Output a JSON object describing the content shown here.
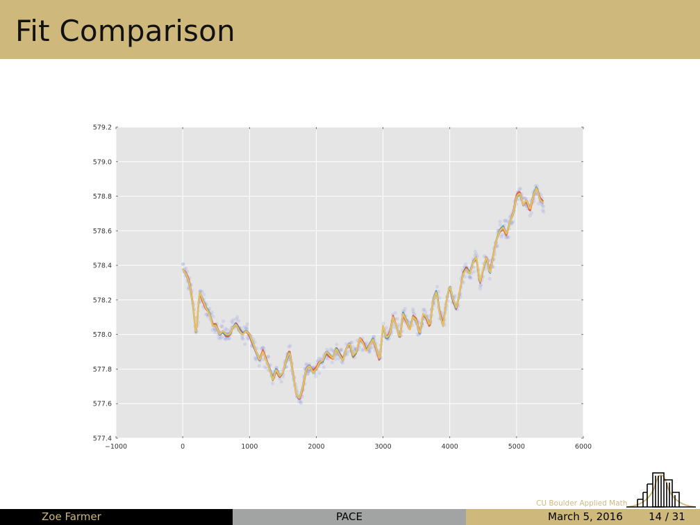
{
  "slide": {
    "title": "Fit Comparison"
  },
  "footer": {
    "author": "Zoe Farmer",
    "title": "PACE",
    "date": "March 5, 2016",
    "page": "14 / 31",
    "institute": "CU Boulder Applied Math"
  },
  "colors": {
    "gold": "#cfb87c",
    "black": "#000000",
    "gray": "#a2a4a3",
    "plot_bg": "#e5e5e5",
    "points": "#6f7fd8",
    "series": [
      "#e24a33",
      "#348abd",
      "#988ed5",
      "#8eba42",
      "#fbc15e"
    ]
  },
  "chart_data": {
    "type": "scatter",
    "xlim": [
      -1000,
      6000
    ],
    "ylim": [
      577.4,
      579.2
    ],
    "x_ticks": [
      "−1000",
      "0",
      "1000",
      "2000",
      "3000",
      "4000",
      "5000",
      "6000"
    ],
    "y_ticks": [
      "577.4",
      "577.6",
      "577.8",
      "578.0",
      "578.2",
      "578.4",
      "578.6",
      "578.8",
      "579.0",
      "579.2"
    ],
    "grid": true,
    "trend": {
      "x": [
        0,
        50,
        100,
        150,
        200,
        250,
        300,
        350,
        400,
        450,
        500,
        550,
        600,
        650,
        700,
        750,
        800,
        850,
        900,
        950,
        1000,
        1050,
        1100,
        1150,
        1200,
        1250,
        1300,
        1350,
        1400,
        1450,
        1500,
        1550,
        1600,
        1650,
        1700,
        1750,
        1800,
        1850,
        1900,
        1950,
        2000,
        2050,
        2100,
        2150,
        2200,
        2250,
        2300,
        2350,
        2400,
        2450,
        2500,
        2550,
        2600,
        2650,
        2700,
        2750,
        2800,
        2850,
        2900,
        2950,
        3000,
        3050,
        3100,
        3150,
        3200,
        3250,
        3300,
        3350,
        3400,
        3450,
        3500,
        3550,
        3600,
        3650,
        3700,
        3750,
        3800,
        3850,
        3900,
        3950,
        4000,
        4050,
        4100,
        4150,
        4200,
        4250,
        4300,
        4350,
        4400,
        4450,
        4500,
        4550,
        4600,
        4650,
        4700,
        4750,
        4800,
        4850,
        4900,
        4950,
        5000,
        5050,
        5100,
        5150,
        5200,
        5250,
        5300,
        5350,
        5400
      ],
      "y": [
        578.38,
        578.35,
        578.3,
        578.18,
        578.0,
        578.25,
        578.2,
        578.15,
        578.12,
        578.05,
        578.05,
        578.0,
        578.02,
        578.0,
        578.0,
        578.04,
        578.06,
        578.02,
        578.0,
        578.02,
        578.0,
        577.95,
        577.9,
        577.85,
        577.9,
        577.85,
        577.8,
        577.74,
        577.8,
        577.76,
        577.78,
        577.85,
        577.9,
        577.78,
        577.65,
        577.63,
        577.7,
        577.8,
        577.82,
        577.78,
        577.8,
        577.84,
        577.85,
        577.9,
        577.88,
        577.86,
        577.92,
        577.88,
        577.85,
        577.92,
        577.95,
        577.88,
        577.9,
        577.98,
        577.95,
        577.9,
        577.94,
        577.97,
        577.92,
        577.85,
        578.05,
        577.98,
        578.0,
        578.1,
        578.05,
        577.98,
        578.12,
        578.08,
        578.02,
        578.1,
        578.08,
        578.0,
        578.12,
        578.1,
        578.05,
        578.2,
        578.25,
        578.12,
        578.05,
        578.2,
        578.28,
        578.2,
        578.15,
        578.25,
        578.35,
        578.38,
        578.35,
        578.42,
        578.45,
        578.3,
        578.38,
        578.45,
        578.35,
        578.45,
        578.55,
        578.6,
        578.62,
        578.58,
        578.65,
        578.7,
        578.8,
        578.82,
        578.75,
        578.78,
        578.72,
        578.8,
        578.85,
        578.78,
        578.76
      ]
    }
  }
}
